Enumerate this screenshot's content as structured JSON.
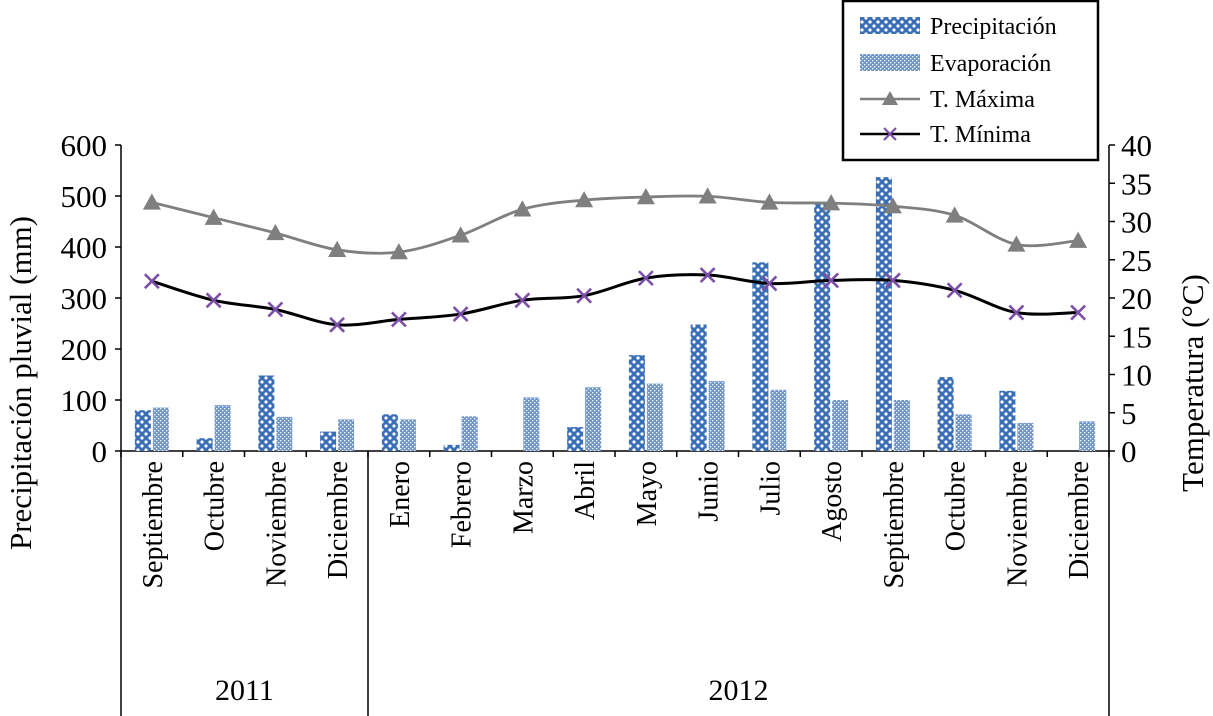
{
  "chart_data": {
    "type": "bar",
    "categories": [
      "Septiembre",
      "Octubre",
      "Noviembre",
      "Diciembre",
      "Enero",
      "Febrero",
      "Marzo",
      "Abril",
      "Mayo",
      "Junio",
      "Julio",
      "Agosto",
      "Septiembre",
      "Octubre",
      "Noviembre",
      "Diciembre"
    ],
    "groups": [
      {
        "label": "2011",
        "count": 4
      },
      {
        "label": "2012",
        "count": 12
      }
    ],
    "y_left": {
      "label": "Precipitación pluvial (mm)",
      "lim": [
        0,
        600
      ],
      "ticks": [
        0,
        100,
        200,
        300,
        400,
        500,
        600
      ]
    },
    "y_right": {
      "label": "Temperatura (°C)",
      "lim": [
        0,
        40
      ],
      "ticks": [
        0,
        5,
        10,
        15,
        20,
        25,
        30,
        35,
        40
      ]
    },
    "series": [
      {
        "name": "Precipitación",
        "type": "bar",
        "axis": "left",
        "color": "#3a6eb5",
        "values": [
          80,
          25,
          148,
          38,
          72,
          12,
          0,
          47,
          188,
          248,
          370,
          485,
          537,
          145,
          118,
          0
        ]
      },
      {
        "name": "Evaporación",
        "type": "bar",
        "axis": "left",
        "color": "#5b86c6",
        "values": [
          85,
          90,
          67,
          62,
          62,
          68,
          105,
          125,
          132,
          137,
          120,
          100,
          100,
          72,
          55,
          58
        ]
      },
      {
        "name": "T. Máxima",
        "type": "line",
        "axis": "right",
        "color": "#7f7f7f",
        "marker": "triangle",
        "values": [
          32.5,
          30.5,
          28.5,
          26.3,
          26.0,
          28.2,
          31.6,
          32.8,
          33.2,
          33.3,
          32.5,
          32.4,
          32.0,
          30.8,
          27.0,
          27.5
        ]
      },
      {
        "name": "T. Mínima",
        "type": "line",
        "axis": "right",
        "color": "#000000",
        "marker": "x",
        "marker_color": "#7b4fa8",
        "values": [
          22.2,
          19.7,
          18.5,
          16.5,
          17.2,
          17.9,
          19.7,
          20.3,
          22.6,
          23.0,
          21.9,
          22.3,
          22.3,
          21.0,
          18.1,
          18.1
        ]
      }
    ],
    "legend": {
      "position": "top-right",
      "labels": [
        "Precipitación",
        "Evaporación",
        "T. Máxima",
        "T. Mínima"
      ]
    }
  }
}
